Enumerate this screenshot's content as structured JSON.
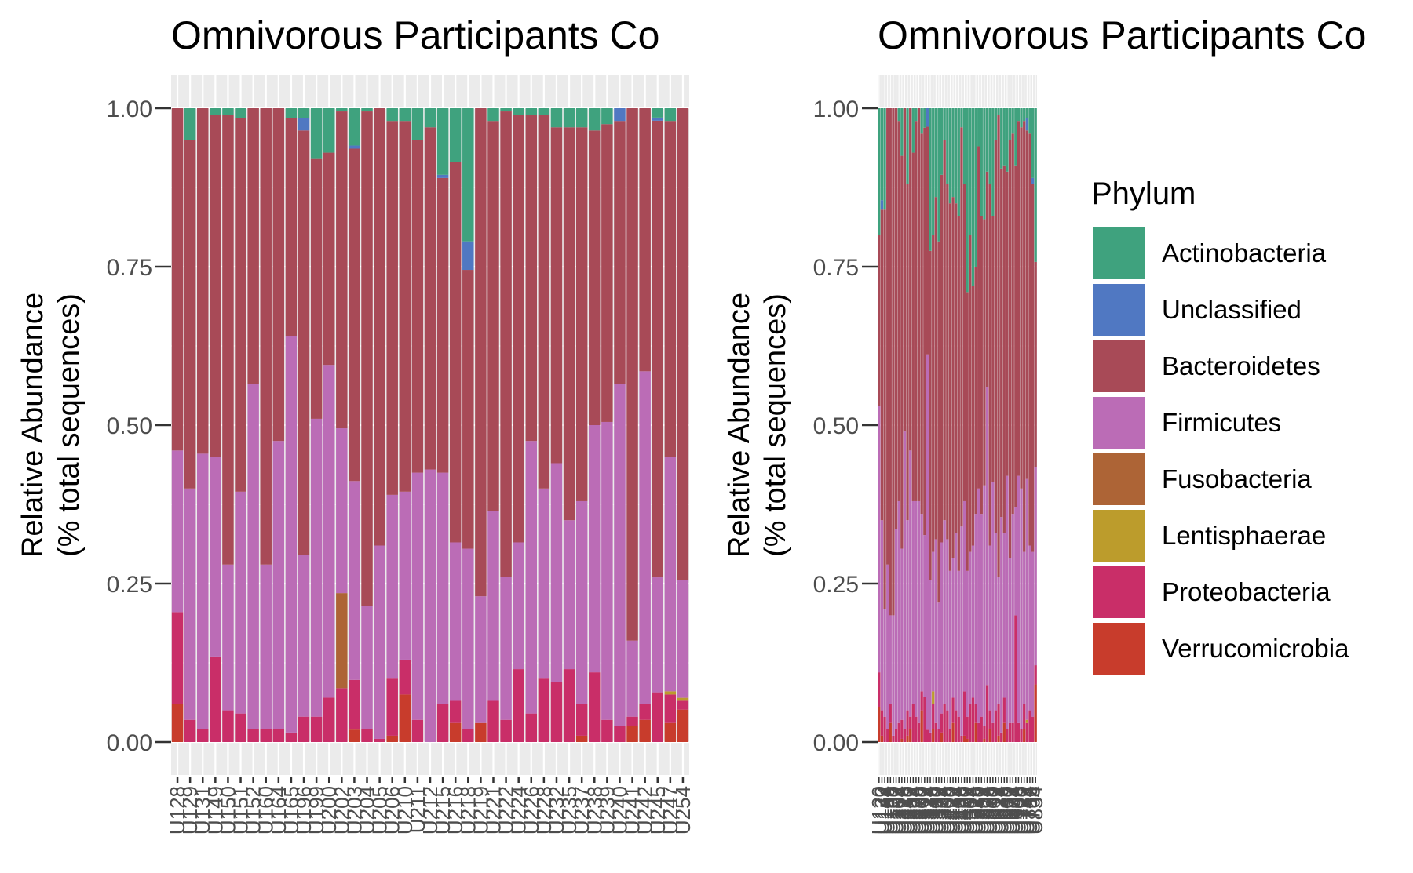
{
  "chart_data": [
    {
      "type": "bar",
      "stacked": true,
      "title": "Omnivorous Participants Co",
      "ylabel": [
        "Relative Abundance",
        "(% total sequences)"
      ],
      "xlabel": "",
      "ylim": [
        0,
        1
      ],
      "yticks": [
        "0.00",
        "0.25",
        "0.50",
        "0.75",
        "1.00"
      ],
      "grid": true,
      "categories": [
        "U128",
        "U129",
        "U131",
        "U149",
        "U150",
        "U151",
        "U152",
        "U160",
        "U164",
        "U165",
        "U196",
        "U199",
        "U200",
        "U202",
        "U203",
        "U204",
        "U205",
        "U206",
        "U210",
        "U211",
        "U212",
        "U215",
        "U216",
        "U218",
        "U219",
        "U221",
        "U222",
        "U224",
        "U226",
        "U228",
        "U232",
        "U235",
        "U237",
        "U238",
        "U239",
        "U240",
        "U241",
        "U242",
        "U245",
        "U247",
        "U254"
      ],
      "series": [
        {
          "name": "Verrucomicrobia",
          "values": [
            0.06,
            0.0,
            0.0,
            0.0,
            0.0,
            0.0,
            0.0,
            0.0,
            0.0,
            0.0,
            0.0,
            0.0,
            0.0,
            0.0,
            0.02,
            0.0,
            0.0,
            0.01,
            0.075,
            0.0,
            0.0,
            0.0,
            0.03,
            0.0,
            0.03,
            0.0,
            0.0,
            0.0,
            0.0,
            0.0,
            0.0,
            0.0,
            0.01,
            0.0,
            0.0,
            0.0,
            0.025,
            0.035,
            0.0,
            0.03,
            0.055
          ]
        },
        {
          "name": "Proteobacteria",
          "values": [
            0.145,
            0.035,
            0.02,
            0.135,
            0.05,
            0.045,
            0.02,
            0.02,
            0.02,
            0.015,
            0.04,
            0.04,
            0.07,
            0.085,
            0.08,
            0.02,
            0.005,
            0.09,
            0.055,
            0.035,
            0.0,
            0.06,
            0.035,
            0.02,
            0.0,
            0.065,
            0.035,
            0.115,
            0.045,
            0.1,
            0.095,
            0.115,
            0.05,
            0.11,
            0.035,
            0.025,
            0.015,
            0.025,
            0.08,
            0.045,
            0.015
          ]
        },
        {
          "name": "Fusobacteria",
          "values": [
            0.0,
            0.0,
            0.0,
            0.0,
            0.0,
            0.0,
            0.0,
            0.0,
            0.0,
            0.0,
            0.0,
            0.0,
            0.0,
            0.15,
            0.0,
            0.0,
            0.0,
            0.0,
            0.0,
            0.0,
            0.0,
            0.0,
            0.0,
            0.0,
            0.0,
            0.0,
            0.0,
            0.0,
            0.0,
            0.0,
            0.0,
            0.0,
            0.0,
            0.0,
            0.0,
            0.0,
            0.0,
            0.0,
            0.0,
            0.0,
            0.0
          ]
        },
        {
          "name": "Lentisphaerae",
          "values": [
            0.0,
            0.0,
            0.0,
            0.0,
            0.0,
            0.0,
            0.0,
            0.0,
            0.0,
            0.0,
            0.0,
            0.0,
            0.0,
            0.0,
            0.0,
            0.0,
            0.0,
            0.0,
            0.0,
            0.0,
            0.0,
            0.0,
            0.0,
            0.0,
            0.0,
            0.0,
            0.0,
            0.0,
            0.0,
            0.0,
            0.0,
            0.0,
            0.0,
            0.0,
            0.0,
            0.0,
            0.0,
            0.0,
            0.0,
            0.005,
            0.005
          ]
        },
        {
          "name": "Firmicutes",
          "values": [
            0.255,
            0.365,
            0.435,
            0.315,
            0.23,
            0.35,
            0.545,
            0.26,
            0.455,
            0.625,
            0.255,
            0.47,
            0.525,
            0.26,
            0.32,
            0.195,
            0.305,
            0.29,
            0.265,
            0.39,
            0.43,
            0.365,
            0.25,
            0.285,
            0.2,
            0.3,
            0.225,
            0.2,
            0.43,
            0.3,
            0.345,
            0.235,
            0.32,
            0.39,
            0.47,
            0.54,
            0.12,
            0.525,
            0.185,
            0.37,
            0.2
          ]
        },
        {
          "name": "Bacteroidetes",
          "values": [
            0.54,
            0.55,
            0.545,
            0.54,
            0.71,
            0.59,
            0.435,
            0.72,
            0.525,
            0.345,
            0.67,
            0.41,
            0.335,
            0.5,
            0.535,
            0.78,
            0.69,
            0.59,
            0.585,
            0.525,
            0.54,
            0.465,
            0.6,
            0.44,
            0.77,
            0.615,
            0.735,
            0.675,
            0.515,
            0.59,
            0.53,
            0.62,
            0.59,
            0.465,
            0.47,
            0.415,
            0.84,
            0.415,
            0.735,
            0.53,
            0.8
          ]
        },
        {
          "name": "Unclassified",
          "values": [
            0.0,
            0.0,
            0.0,
            0.0,
            0.0,
            0.0,
            0.0,
            0.0,
            0.0,
            0.0,
            0.02,
            0.0,
            0.0,
            0.0,
            0.005,
            0.0,
            0.0,
            0.0,
            0.0,
            0.0,
            0.0,
            0.005,
            0.0,
            0.045,
            0.0,
            0.0,
            0.0,
            0.0,
            0.0,
            0.0,
            0.0,
            0.0,
            0.0,
            0.0,
            0.0,
            0.02,
            0.0,
            0.0,
            0.005,
            0.0,
            0.0
          ]
        },
        {
          "name": "Actinobacteria",
          "values": [
            0.0,
            0.05,
            0.0,
            0.01,
            0.01,
            0.015,
            0.0,
            0.0,
            0.0,
            0.015,
            0.015,
            0.08,
            0.07,
            0.005,
            0.06,
            0.005,
            0.0,
            0.02,
            0.02,
            0.05,
            0.03,
            0.105,
            0.085,
            0.21,
            0.0,
            0.02,
            0.005,
            0.01,
            0.01,
            0.01,
            0.03,
            0.03,
            0.03,
            0.035,
            0.025,
            0.0,
            0.0,
            0.0,
            0.015,
            0.02,
            0.0
          ]
        }
      ]
    },
    {
      "type": "bar",
      "stacked": true,
      "title": "Omnivorous Participants Co",
      "ylabel": [
        "Relative Abundance",
        "(% total sequences)"
      ],
      "xlabel": "",
      "ylim": [
        0,
        1
      ],
      "yticks": [
        "0.00",
        "0.25",
        "0.50",
        "0.75",
        "1.00"
      ],
      "grid": true,
      "first_category": "U120",
      "last_category": "U834",
      "categories_count": 56,
      "series": [
        {
          "name": "Verrucomicrobia",
          "values": [
            0.055,
            0.01,
            0.0,
            0.0,
            0.03,
            0.0,
            0.0,
            0.0,
            0.005,
            0.0,
            0.01,
            0.02,
            0.0,
            0.0,
            0.0,
            0.05,
            0.0,
            0.0,
            0.0,
            0.02,
            0.0,
            0.0,
            0.015,
            0.0,
            0.0,
            0.0,
            0.03,
            0.0,
            0.0,
            0.0,
            0.01,
            0.005,
            0.0,
            0.0,
            0.03,
            0.0,
            0.0,
            0.005,
            0.0,
            0.02,
            0.0,
            0.0,
            0.01,
            0.0,
            0.03,
            0.0,
            0.0,
            0.0,
            0.0,
            0.0,
            0.0,
            0.02,
            0.0,
            0.0,
            0.0,
            0.09
          ]
        },
        {
          "name": "Proteobacteria",
          "values": [
            0.055,
            0.04,
            0.04,
            0.02,
            0.03,
            0.01,
            0.02,
            0.03,
            0.03,
            0.02,
            0.04,
            0.02,
            0.06,
            0.04,
            0.03,
            0.03,
            0.07,
            0.02,
            0.015,
            0.04,
            0.03,
            0.02,
            0.03,
            0.06,
            0.05,
            0.02,
            0.04,
            0.05,
            0.04,
            0.01,
            0.07,
            0.035,
            0.06,
            0.07,
            0.03,
            0.03,
            0.04,
            0.02,
            0.09,
            0.03,
            0.03,
            0.05,
            0.05,
            0.015,
            0.04,
            0.02,
            0.03,
            0.03,
            0.2,
            0.03,
            0.02,
            0.04,
            0.03,
            0.05,
            0.04,
            0.03
          ]
        },
        {
          "name": "Fusobacteria",
          "values": [
            0.0,
            0.0,
            0.0,
            0.0,
            0.0,
            0.0,
            0.0,
            0.0,
            0.0,
            0.0,
            0.0,
            0.0,
            0.0,
            0.0,
            0.0,
            0.0,
            0.0,
            0.0,
            0.0,
            0.0,
            0.0,
            0.0,
            0.0,
            0.0,
            0.0,
            0.0,
            0.0,
            0.0,
            0.0,
            0.0,
            0.0,
            0.0,
            0.0,
            0.0,
            0.0,
            0.0,
            0.0,
            0.0,
            0.0,
            0.0,
            0.0,
            0.0,
            0.0,
            0.0,
            0.0,
            0.0,
            0.0,
            0.0,
            0.0,
            0.0,
            0.0,
            0.0,
            0.0,
            0.0,
            0.0,
            0.0
          ]
        },
        {
          "name": "Lentisphaerae",
          "values": [
            0.0,
            0.0,
            0.0,
            0.0,
            0.0,
            0.0,
            0.0,
            0.0,
            0.0,
            0.0,
            0.0,
            0.0,
            0.0,
            0.0,
            0.0,
            0.0,
            0.0,
            0.0,
            0.0,
            0.02,
            0.0,
            0.0,
            0.0,
            0.0,
            0.0,
            0.0,
            0.0,
            0.0,
            0.0,
            0.0,
            0.0,
            0.0,
            0.0,
            0.0,
            0.0,
            0.0,
            0.0,
            0.0,
            0.0,
            0.0,
            0.0,
            0.0,
            0.0,
            0.0,
            0.0,
            0.0,
            0.0,
            0.0,
            0.0,
            0.0,
            0.0,
            0.0,
            0.005,
            0.0,
            0.0,
            0.0
          ]
        },
        {
          "name": "Firmicutes",
          "values": [
            0.42,
            0.3,
            0.17,
            0.26,
            0.14,
            0.19,
            0.32,
            0.35,
            0.27,
            0.47,
            0.3,
            0.42,
            0.32,
            0.34,
            0.35,
            0.28,
            0.25,
            0.61,
            0.24,
            0.22,
            0.29,
            0.2,
            0.27,
            0.29,
            0.27,
            0.25,
            0.22,
            0.28,
            0.23,
            0.33,
            0.3,
            0.23,
            0.24,
            0.24,
            0.3,
            0.37,
            0.32,
            0.38,
            0.47,
            0.26,
            0.38,
            0.28,
            0.2,
            0.34,
            0.26,
            0.4,
            0.26,
            0.33,
            0.17,
            0.39,
            0.38,
            0.24,
            0.38,
            0.26,
            0.26,
            0.31
          ]
        },
        {
          "name": "Bacteroidetes",
          "values": [
            0.27,
            0.49,
            0.63,
            0.72,
            0.8,
            0.8,
            0.67,
            0.6,
            0.62,
            0.51,
            0.53,
            0.54,
            0.55,
            0.6,
            0.62,
            0.6,
            0.63,
            0.37,
            0.52,
            0.5,
            0.54,
            0.57,
            0.58,
            0.6,
            0.56,
            0.58,
            0.57,
            0.52,
            0.56,
            0.63,
            0.5,
            0.44,
            0.5,
            0.41,
            0.39,
            0.54,
            0.47,
            0.42,
            0.34,
            0.57,
            0.42,
            0.62,
            0.73,
            0.55,
            0.58,
            0.48,
            0.66,
            0.6,
            0.54,
            0.56,
            0.57,
            0.68,
            0.55,
            0.65,
            0.58,
            0.32
          ]
        },
        {
          "name": "Unclassified",
          "values": [
            0.0,
            0.015,
            0.0,
            0.0,
            0.0,
            0.0,
            0.0,
            0.0,
            0.0,
            0.0,
            0.0,
            0.0,
            0.0,
            0.0,
            0.0,
            0.0,
            0.0,
            0.03,
            0.0,
            0.0,
            0.0,
            0.0,
            0.0,
            0.0,
            0.0,
            0.0,
            0.0,
            0.0,
            0.0,
            0.0,
            0.0,
            0.0,
            0.0,
            0.0,
            0.0,
            0.0,
            0.0,
            0.0,
            0.0,
            0.0,
            0.0,
            0.0,
            0.0,
            0.0,
            0.0,
            0.0,
            0.0,
            0.0,
            0.0,
            0.0,
            0.0,
            0.0,
            0.02,
            0.0,
            0.01,
            0.0
          ]
        },
        {
          "name": "Actinobacteria",
          "values": [
            0.2,
            0.145,
            0.16,
            0.0,
            0.0,
            0.0,
            0.0,
            0.02,
            0.075,
            0.0,
            0.12,
            0.0,
            0.07,
            0.02,
            0.0,
            0.04,
            0.03,
            0.0,
            0.225,
            0.2,
            0.14,
            0.21,
            0.105,
            0.05,
            0.12,
            0.15,
            0.14,
            0.15,
            0.17,
            0.03,
            0.12,
            0.29,
            0.2,
            0.28,
            0.25,
            0.06,
            0.17,
            0.175,
            0.1,
            0.12,
            0.17,
            0.05,
            0.01,
            0.095,
            0.09,
            0.1,
            0.05,
            0.04,
            0.09,
            0.02,
            0.03,
            0.02,
            0.015,
            0.04,
            0.11,
            0.24
          ]
        }
      ]
    }
  ],
  "legend": {
    "title": "Phylum",
    "items": [
      {
        "label": "Actinobacteria",
        "color": "#3FA27E"
      },
      {
        "label": "Unclassified",
        "color": "#5078C2"
      },
      {
        "label": "Bacteroidetes",
        "color": "#A84A57"
      },
      {
        "label": "Firmicutes",
        "color": "#BB6CB6"
      },
      {
        "label": "Fusobacteria",
        "color": "#AD6436"
      },
      {
        "label": "Lentisphaerae",
        "color": "#BC9C2C"
      },
      {
        "label": "Proteobacteria",
        "color": "#C92E68"
      },
      {
        "label": "Verrucomicrobia",
        "color": "#C83C2C"
      }
    ]
  }
}
